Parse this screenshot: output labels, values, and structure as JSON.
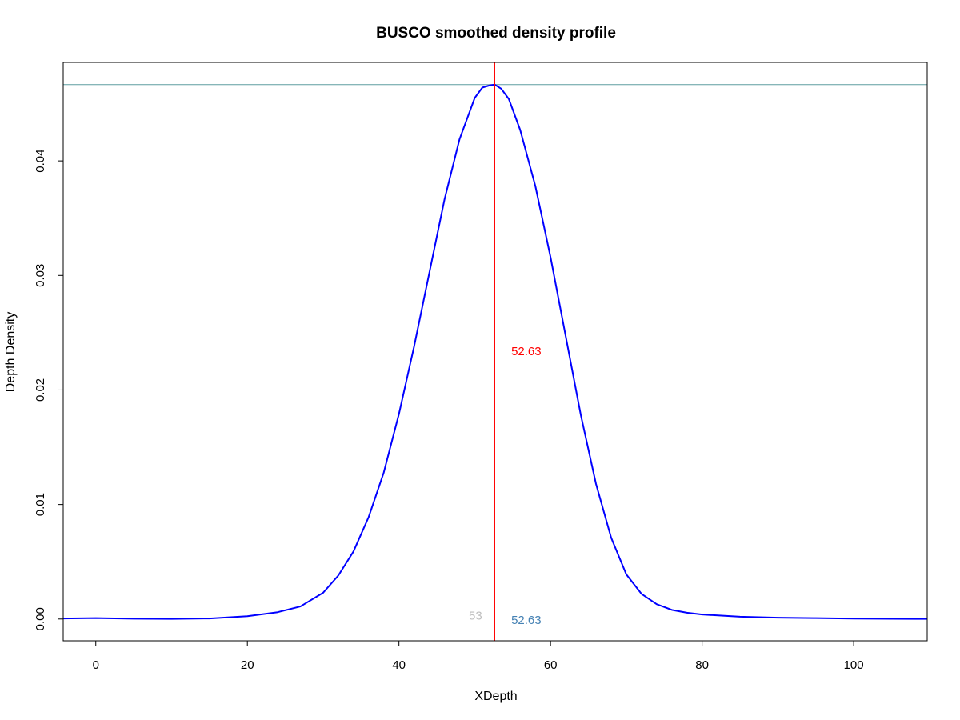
{
  "chart_data": {
    "type": "line",
    "title": "BUSCO smoothed density profile",
    "xlabel": "XDepth",
    "ylabel": "Depth Density",
    "xlim": [
      -4.3,
      109.7
    ],
    "ylim": [
      -0.0019,
      0.0486
    ],
    "xticks": [
      0,
      20,
      40,
      60,
      80,
      100
    ],
    "yticks": [
      0.0,
      0.01,
      0.02,
      0.03,
      0.04
    ],
    "ytick_labels": [
      "0.00",
      "0.01",
      "0.02",
      "0.03",
      "0.04"
    ],
    "grid": false,
    "series": [
      {
        "color": "#0000ff",
        "x": [
          -4.3,
          0,
          5,
          10,
          15,
          20,
          24,
          27,
          30,
          32,
          34,
          36,
          38,
          40,
          42,
          44,
          46,
          48,
          50,
          51,
          52,
          52.63,
          53.5,
          54.5,
          56,
          58,
          60,
          62,
          64,
          66,
          68,
          70,
          72,
          74,
          76,
          78,
          80,
          85,
          90,
          95,
          100,
          105,
          109.7
        ],
        "y": [
          5e-05,
          8e-05,
          3e-05,
          1e-05,
          5e-05,
          0.00025,
          0.0006,
          0.0011,
          0.0023,
          0.0038,
          0.0059,
          0.0089,
          0.0128,
          0.0179,
          0.0238,
          0.0302,
          0.0366,
          0.0419,
          0.0455,
          0.0464,
          0.0466,
          0.04666,
          0.0463,
          0.0454,
          0.0427,
          0.0378,
          0.0316,
          0.0247,
          0.0178,
          0.0118,
          0.0071,
          0.0039,
          0.0022,
          0.0013,
          0.0008,
          0.00055,
          0.0004,
          0.0002,
          0.00012,
          8e-05,
          4e-05,
          2e-05,
          1e-05
        ]
      }
    ],
    "reference_lines": {
      "vertical_x": 52.63,
      "vertical_color": "#ff0000",
      "horizontal_y": 0.04666,
      "horizontal_color": "#5f9ea0"
    },
    "annotations": [
      {
        "text": "52.63",
        "x": 56.8,
        "y": 0.0234,
        "color": "#ff0000"
      },
      {
        "text": "52.63",
        "x": 56.8,
        "y": -0.0001,
        "color": "#4682b4"
      },
      {
        "text": "53",
        "x": 50.1,
        "y": 0.0003,
        "color": "#bebebe"
      }
    ]
  }
}
